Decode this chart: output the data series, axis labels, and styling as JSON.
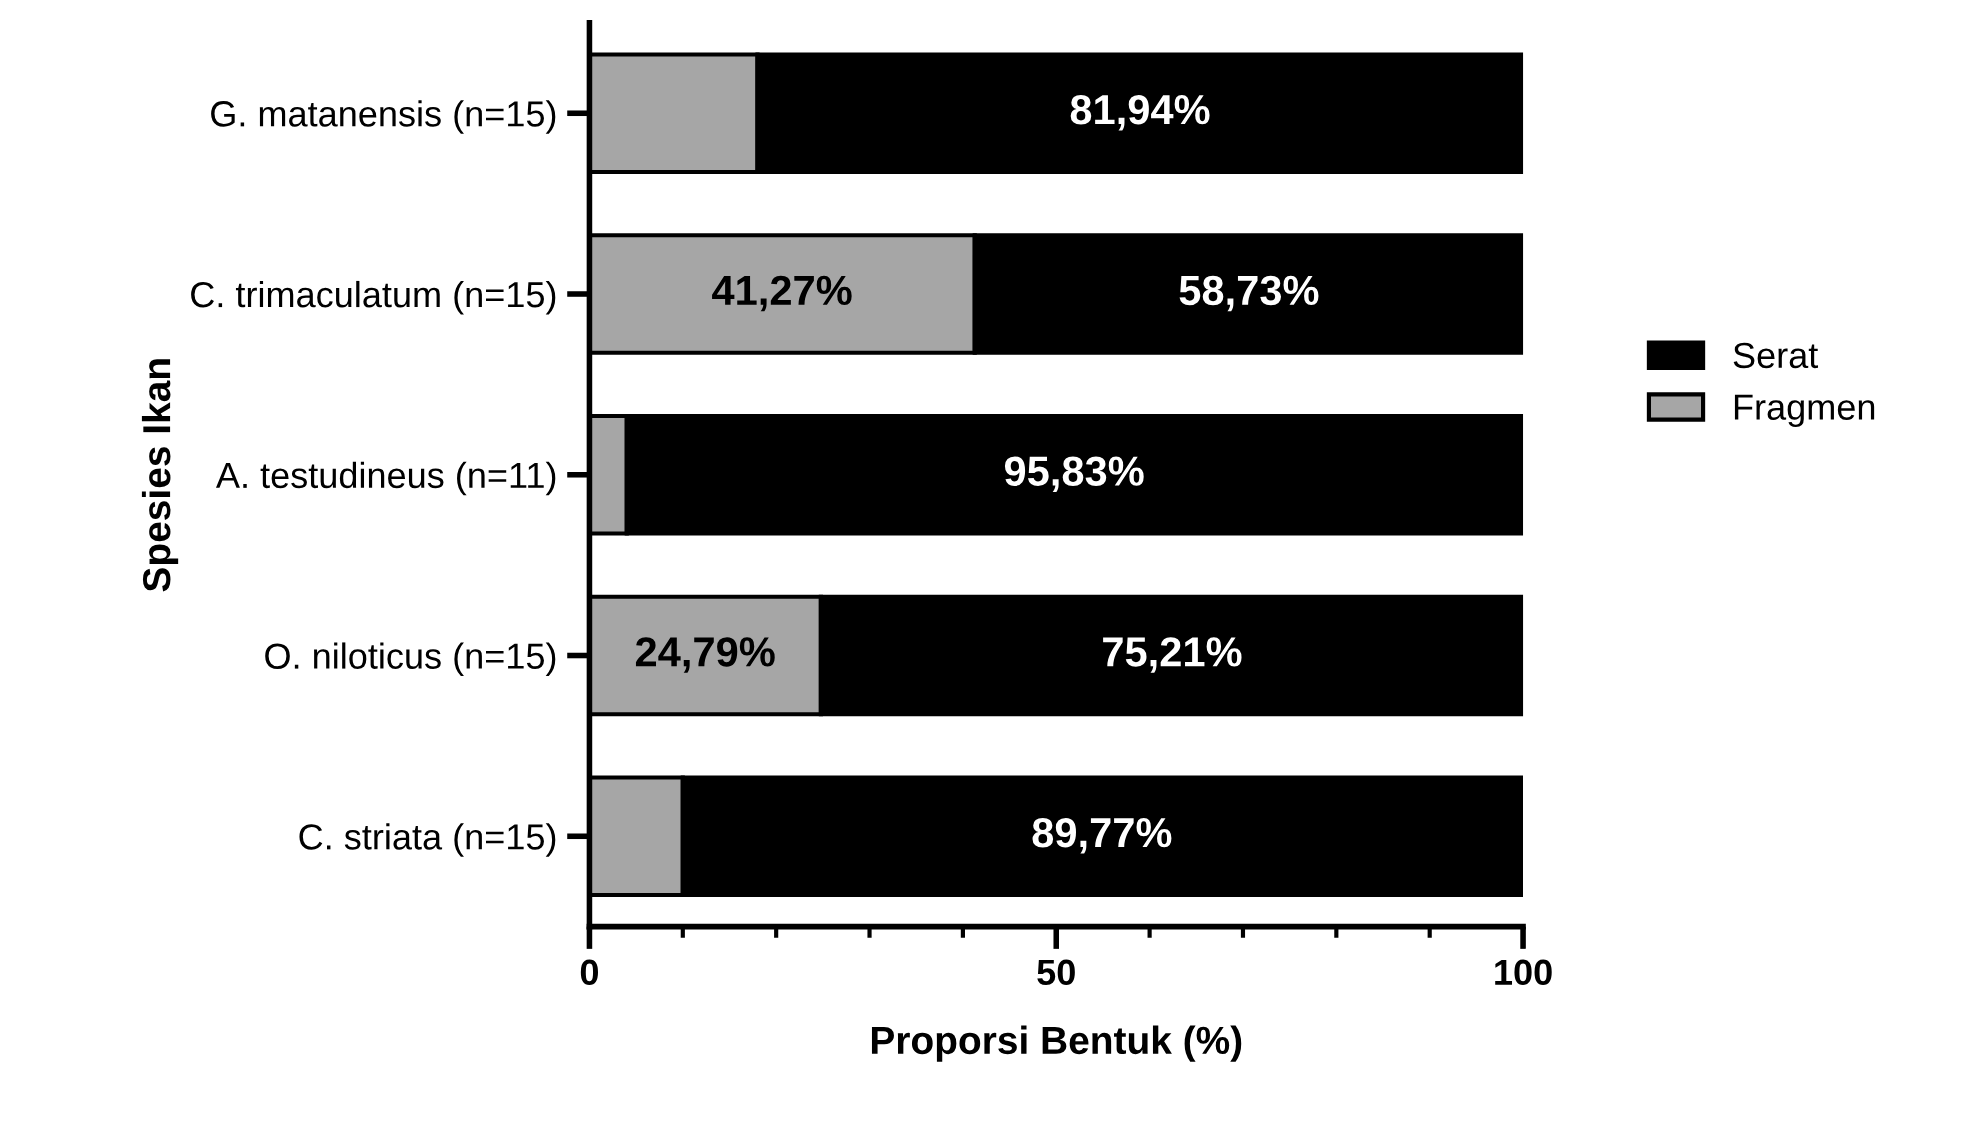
{
  "chart_data": {
    "type": "bar",
    "orientation": "horizontal",
    "stacked": true,
    "xlabel": "Proporsi Bentuk (%)",
    "ylabel": "Spesies Ikan",
    "categories": [
      "G. matanensis (n=15)",
      "C. trimaculatum (n=15)",
      "A. testudineus (n=11)",
      "O. niloticus (n=15)",
      "C. striata (n=15)"
    ],
    "series": [
      {
        "name": "Fragmen",
        "color": "#a6a6a6",
        "values": [
          18,
          41.27,
          4,
          24.79,
          10
        ],
        "value_labels": [
          null,
          "41,27%",
          null,
          "24,79%",
          null
        ]
      },
      {
        "name": "Serat",
        "color": "#000000",
        "values": [
          81.94,
          58.73,
          95.83,
          75.21,
          89.77
        ],
        "value_labels": [
          "81,94%",
          "58,73%",
          "95,83%",
          "75,21%",
          "89,77%"
        ]
      }
    ],
    "xlim": [
      0,
      100
    ],
    "xticks": [
      0,
      {
        "value": 10,
        "label": null
      },
      {
        "value": 20,
        "label": null
      },
      {
        "value": 30,
        "label": null
      },
      {
        "value": 40,
        "label": null
      },
      50,
      {
        "value": 60,
        "label": null
      },
      {
        "value": 70,
        "label": null
      },
      {
        "value": 80,
        "label": null
      },
      {
        "value": 90,
        "label": null
      },
      100
    ],
    "legend": "right",
    "grid": false
  }
}
